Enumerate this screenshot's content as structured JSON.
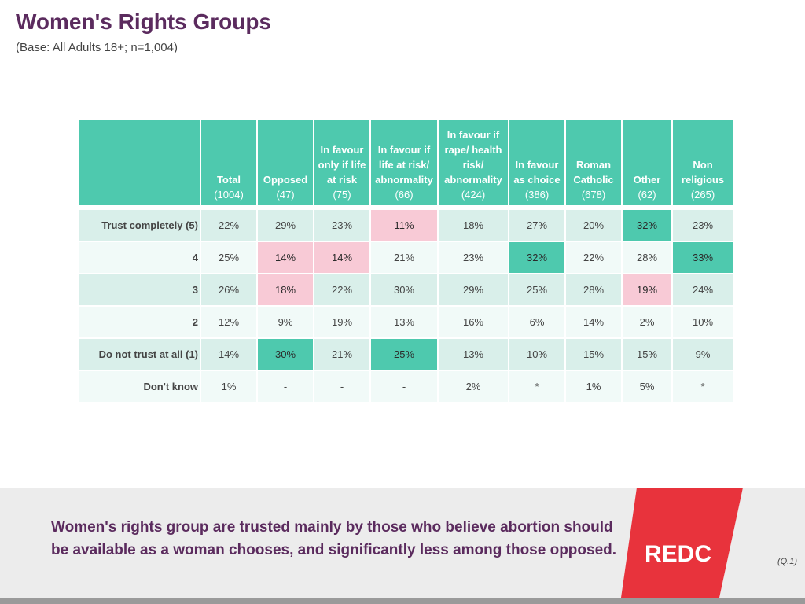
{
  "header": {
    "title": "Women's Rights Groups",
    "subtitle": "(Base: All Adults 18+; n=1,004)"
  },
  "chart_data": {
    "type": "table",
    "title": "Women's Rights Groups",
    "columns": [
      {
        "lines": [
          "Total"
        ],
        "base": "(1004)",
        "width": 66
      },
      {
        "lines": [
          "Opposed"
        ],
        "base": "(47)",
        "width": 66
      },
      {
        "lines": [
          "In favour",
          "only if life",
          "at risk"
        ],
        "base": "(75)",
        "width": 66
      },
      {
        "lines": [
          "In favour if",
          "life at risk/",
          "abnormality"
        ],
        "base": "(66)",
        "width": 80
      },
      {
        "lines": [
          "In favour if",
          "rape/ health",
          "risk/",
          "abnormality"
        ],
        "base": "(424)",
        "width": 84
      },
      {
        "lines": [
          "In favour",
          "as choice"
        ],
        "base": "(386)",
        "width": 66
      },
      {
        "lines": [
          "Roman",
          "Catholic"
        ],
        "base": "(678)",
        "width": 66
      },
      {
        "lines": [
          "Other"
        ],
        "base": "(62)",
        "width": 58
      },
      {
        "lines": [
          "Non",
          "religious"
        ],
        "base": "(265)",
        "width": 72
      }
    ],
    "rows": [
      {
        "label": "Trust completely (5)",
        "values": [
          "22%",
          "29%",
          "23%",
          "11%",
          "18%",
          "27%",
          "20%",
          "32%",
          "23%"
        ],
        "highlight": [
          "",
          "",
          "",
          "lo",
          "",
          "",
          "",
          "hi",
          ""
        ]
      },
      {
        "label": "4",
        "values": [
          "25%",
          "14%",
          "14%",
          "21%",
          "23%",
          "32%",
          "22%",
          "28%",
          "33%"
        ],
        "highlight": [
          "",
          "lo",
          "lo",
          "",
          "",
          "hi",
          "",
          "",
          "hi"
        ]
      },
      {
        "label": "3",
        "values": [
          "26%",
          "18%",
          "22%",
          "30%",
          "29%",
          "25%",
          "28%",
          "19%",
          "24%"
        ],
        "highlight": [
          "",
          "lo",
          "",
          "",
          "",
          "",
          "",
          "lo",
          ""
        ]
      },
      {
        "label": "2",
        "values": [
          "12%",
          "9%",
          "19%",
          "13%",
          "16%",
          "6%",
          "14%",
          "2%",
          "10%"
        ],
        "highlight": [
          "",
          "",
          "",
          "",
          "",
          "",
          "",
          "",
          ""
        ]
      },
      {
        "label": "Do not trust at all (1)",
        "values": [
          "14%",
          "30%",
          "21%",
          "25%",
          "13%",
          "10%",
          "15%",
          "15%",
          "9%"
        ],
        "highlight": [
          "",
          "hi",
          "",
          "hi",
          "",
          "",
          "",
          "",
          ""
        ]
      },
      {
        "label": "Don't know",
        "values": [
          "1%",
          "-",
          "-",
          "-",
          "2%",
          "*",
          "1%",
          "5%",
          "*"
        ],
        "highlight": [
          "",
          "",
          "",
          "",
          "",
          "",
          "",
          "",
          ""
        ]
      }
    ]
  },
  "footer": {
    "text": "Women's rights group are trusted mainly by those who believe abortion should be available as a woman chooses, and significantly less among those opposed.",
    "logo_text": "REDC",
    "question_ref": "(Q.1)"
  },
  "colors": {
    "title": "#5b2b5e",
    "header_fill": "#4ec9ae",
    "high": "#4ec9ae",
    "low": "#f8cad6",
    "band": "#d9efea",
    "logo_red": "#e8333c"
  }
}
